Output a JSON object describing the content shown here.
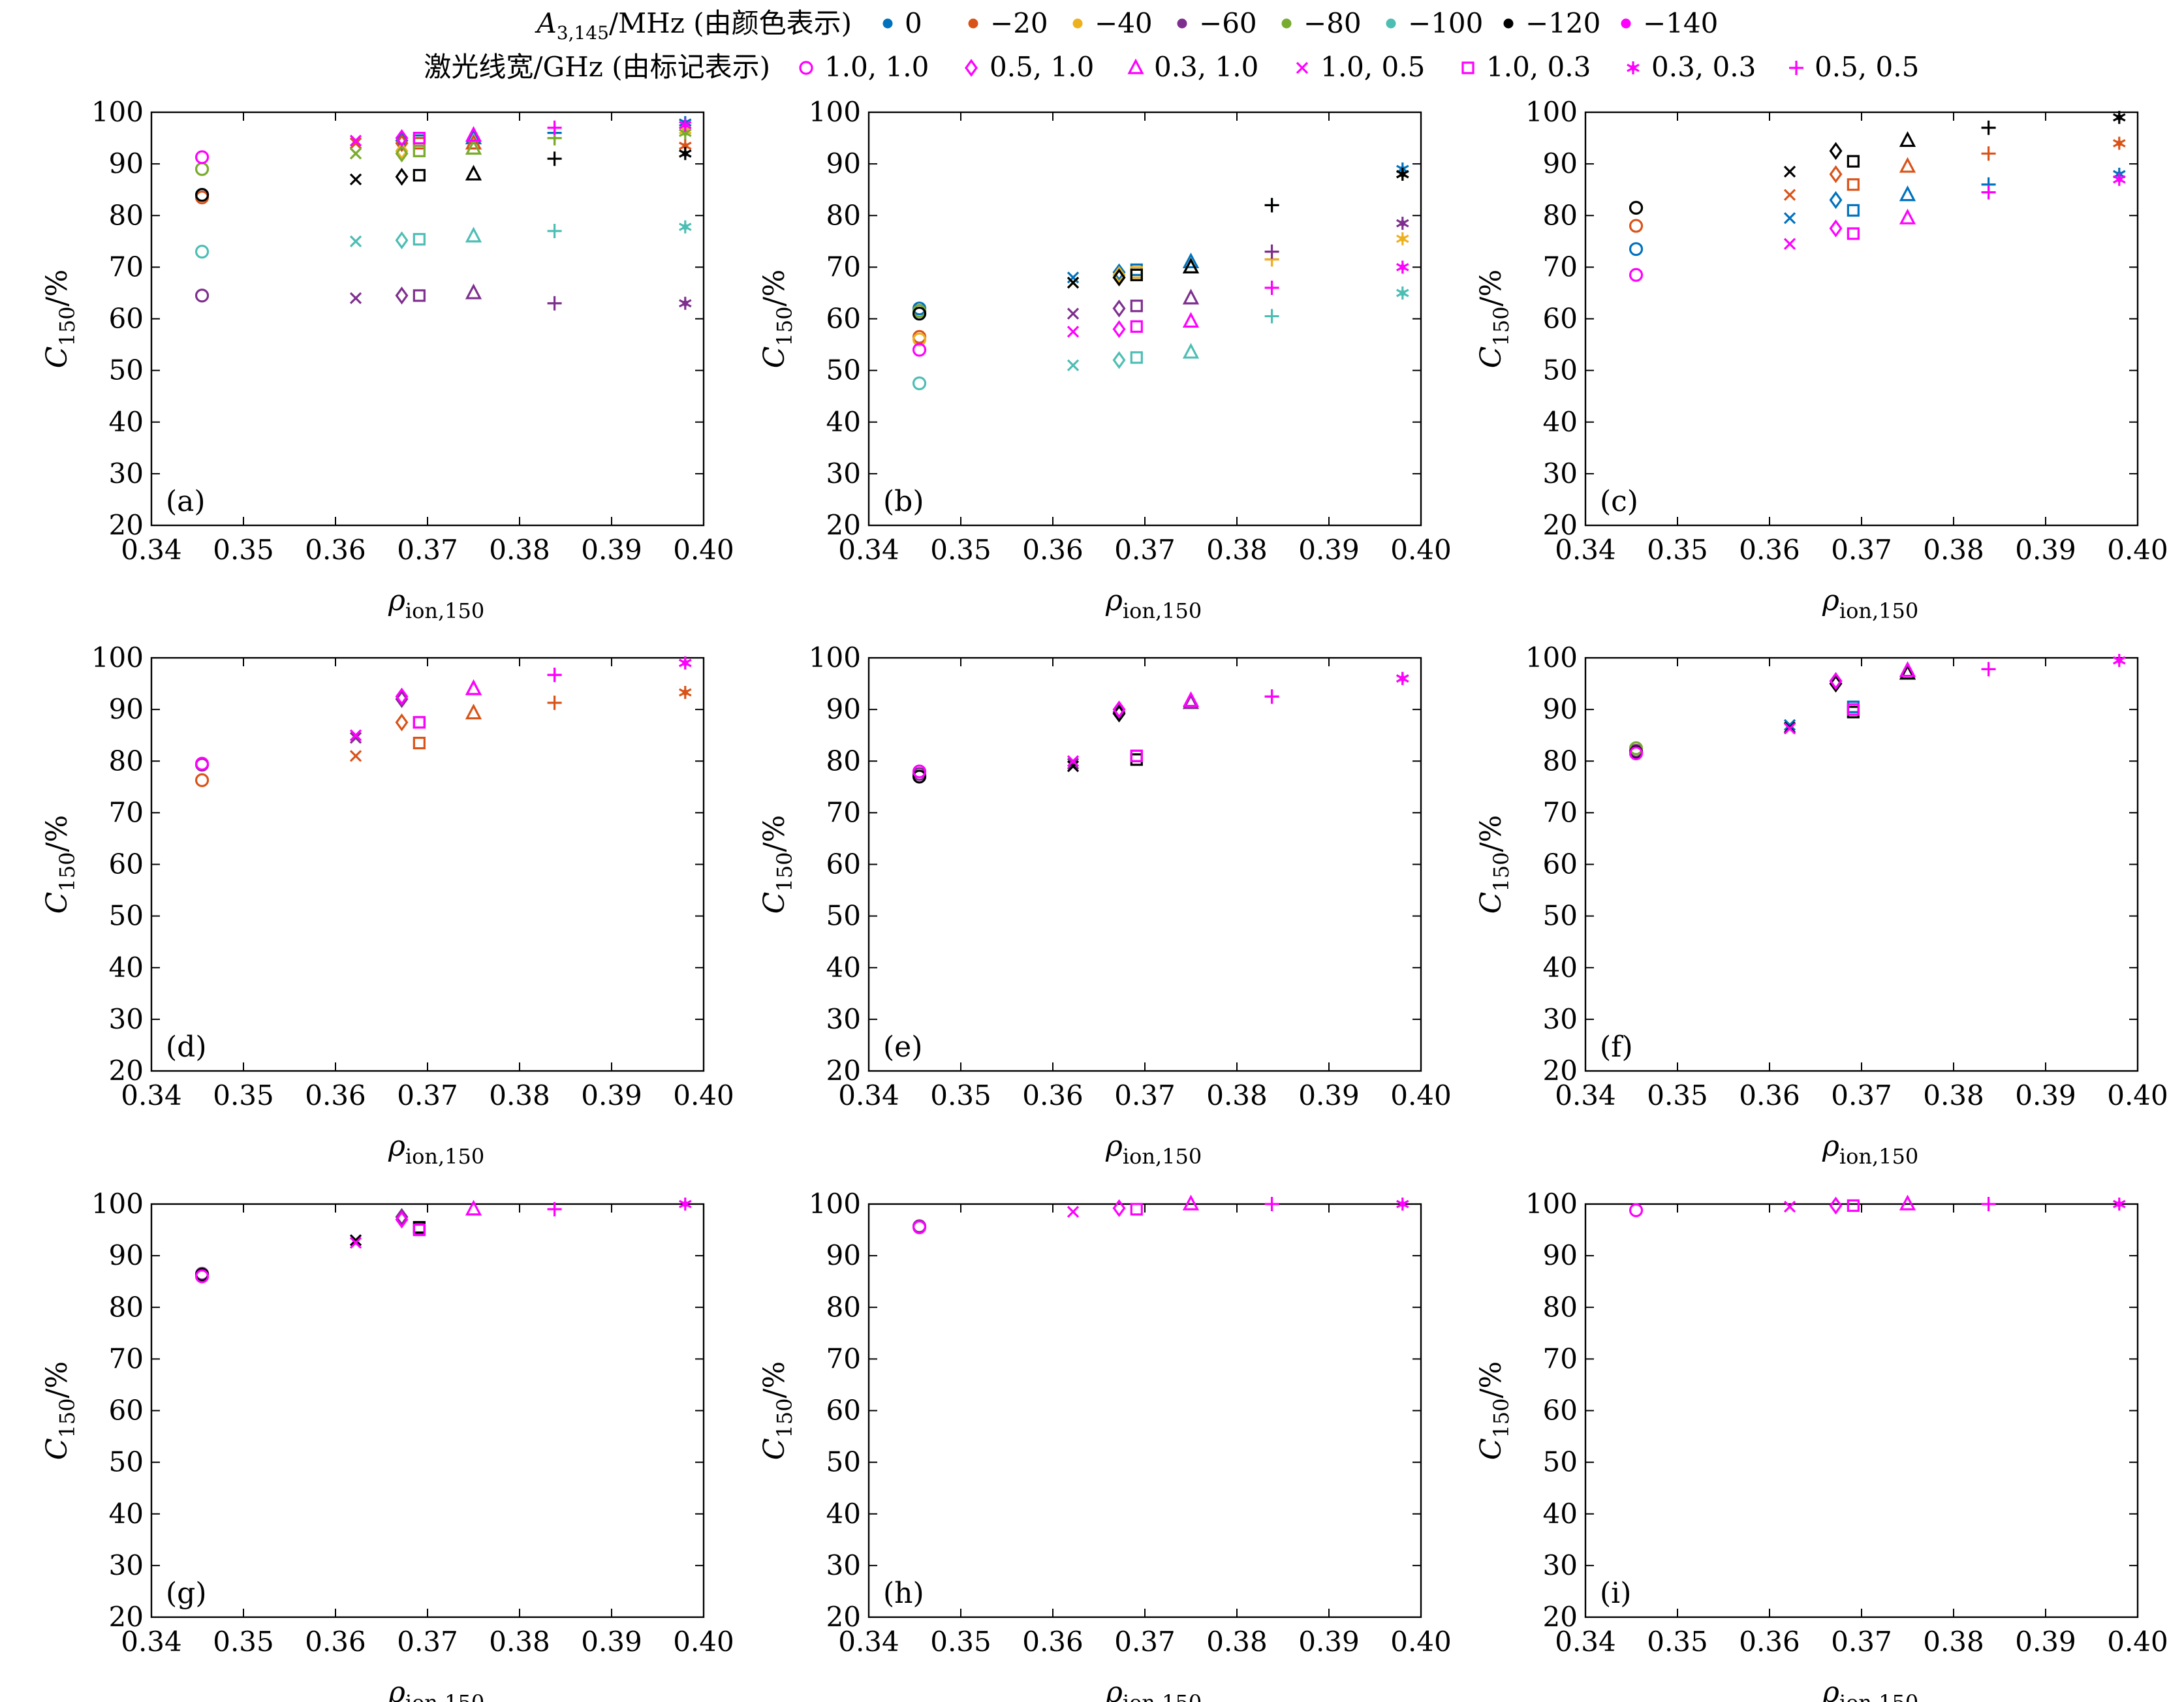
{
  "legend": {
    "color_title_main": "A",
    "color_title_sub": "3,145",
    "color_title_rest": "/MHz (由颜色表示)",
    "marker_title": "激光线宽/GHz (由标记表示)",
    "colors": [
      {
        "label": "0",
        "color": "#0072BD"
      },
      {
        "label": "−20",
        "color": "#D95319"
      },
      {
        "label": "−40",
        "color": "#EDB120"
      },
      {
        "label": "−60",
        "color": "#7E2F8E"
      },
      {
        "label": "−80",
        "color": "#77AC30"
      },
      {
        "label": "−100",
        "color": "#4DBEB4"
      },
      {
        "label": "−120",
        "color": "#000000"
      },
      {
        "label": "−140",
        "color": "#FF00FF"
      }
    ],
    "markers": [
      {
        "label": "1.0, 1.0",
        "marker": "circle"
      },
      {
        "label": "0.5, 1.0",
        "marker": "diamond"
      },
      {
        "label": "0.3, 1.0",
        "marker": "triangle"
      },
      {
        "label": "1.0, 0.5",
        "marker": "x"
      },
      {
        "label": "1.0, 0.3",
        "marker": "square"
      },
      {
        "label": "0.3, 0.3",
        "marker": "star"
      },
      {
        "label": "0.5, 0.5",
        "marker": "plus"
      }
    ]
  },
  "chart_data": {
    "type": "scatter",
    "rows": 3,
    "cols": 3,
    "xlim": [
      0.34,
      0.4
    ],
    "ylim": [
      20,
      100
    ],
    "xticks": [
      "0.34",
      "0.35",
      "0.36",
      "0.37",
      "0.38",
      "0.39",
      "0.40"
    ],
    "yticks": [
      "20",
      "30",
      "40",
      "50",
      "60",
      "70",
      "80",
      "90",
      "100"
    ],
    "xlabel_main": "ρ",
    "xlabel_sub": "ion,150",
    "ylabel_main": "C",
    "ylabel_sub": "150",
    "ylabel_rest": "/%",
    "marker_x": {
      "circle": 0.3455,
      "x": 0.3622,
      "diamond": 0.3672,
      "square": 0.3691,
      "triangle": 0.375,
      "plus": 0.3838,
      "star": 0.398
    },
    "color_order": [
      "0",
      "−20",
      "−40",
      "−60",
      "−80",
      "−100",
      "−120",
      "−140"
    ],
    "panels": [
      {
        "label": "(a)",
        "values": {
          "circle": [
            84,
            83.5,
            89,
            64.5,
            89,
            73,
            84,
            91.3
          ],
          "x": [
            94,
            94,
            92,
            64,
            92,
            75,
            87,
            94.5
          ],
          "diamond": [
            94.5,
            94,
            92.5,
            64.5,
            92,
            75.2,
            87.5,
            95
          ],
          "square": [
            94.5,
            94,
            92.5,
            64.5,
            92.5,
            75.4,
            87.8,
            95
          ],
          "triangle": [
            95,
            94,
            93,
            65,
            93,
            76,
            88,
            95.5
          ],
          "plus": [
            96,
            95,
            95,
            63,
            95,
            77,
            91,
            97
          ],
          "star": [
            98,
            93.5,
            96.5,
            63,
            96,
            77.8,
            92,
            97.5
          ]
        }
      },
      {
        "label": "(b)",
        "values": {
          "circle": [
            62,
            56.5,
            56,
            61.5,
            61.5,
            47.5,
            61,
            54
          ],
          "x": [
            68,
            67,
            67,
            61,
            67,
            51,
            67,
            57.5
          ],
          "diamond": [
            69,
            68,
            68.5,
            62,
            68,
            52,
            68,
            58
          ],
          "square": [
            69.5,
            68.5,
            69,
            62.5,
            68.5,
            52.5,
            68.5,
            58.5
          ],
          "triangle": [
            71,
            70,
            70,
            64,
            70,
            53.5,
            70,
            59.5
          ],
          "plus": [
            82,
            71.5,
            71.5,
            73,
            82,
            60.5,
            82,
            66
          ],
          "star": [
            89,
            88,
            75.5,
            78.5,
            88,
            65,
            88,
            70
          ]
        }
      },
      {
        "label": "(c)",
        "values": {
          "circle": [
            73.5,
            78,
            null,
            null,
            81.5,
            null,
            81.5,
            68.5
          ],
          "x": [
            79.5,
            84,
            null,
            null,
            null,
            null,
            88.5,
            74.5
          ],
          "diamond": [
            83,
            88,
            null,
            null,
            null,
            null,
            92.5,
            77.5
          ],
          "square": [
            81,
            86,
            null,
            null,
            null,
            null,
            90.5,
            76.5
          ],
          "triangle": [
            84,
            89.5,
            null,
            null,
            null,
            null,
            94.5,
            79.5
          ],
          "plus": [
            86,
            92,
            null,
            null,
            null,
            null,
            97,
            84.5
          ],
          "star": [
            88,
            94,
            null,
            null,
            null,
            null,
            99,
            87
          ]
        }
      },
      {
        "label": "(d)",
        "values": {
          "circle": [
            null,
            76.3,
            null,
            79.3,
            null,
            null,
            null,
            79.5
          ],
          "x": [
            null,
            81,
            null,
            84.5,
            null,
            null,
            null,
            85
          ],
          "diamond": [
            null,
            87.5,
            null,
            92,
            null,
            null,
            null,
            92.5
          ],
          "square": [
            null,
            83.5,
            null,
            87.5,
            null,
            null,
            null,
            87.5
          ],
          "triangle": [
            null,
            89.3,
            null,
            94,
            null,
            null,
            null,
            94
          ],
          "plus": [
            null,
            91.3,
            null,
            96.7,
            null,
            null,
            null,
            96.7
          ],
          "star": [
            null,
            93.3,
            null,
            99,
            null,
            null,
            null,
            99
          ]
        }
      },
      {
        "label": "(e)",
        "values": {
          "circle": [
            null,
            null,
            null,
            77.5,
            null,
            null,
            77,
            78
          ],
          "x": [
            null,
            null,
            null,
            79.5,
            null,
            null,
            79,
            80
          ],
          "diamond": [
            null,
            null,
            null,
            89.5,
            null,
            null,
            89.2,
            90
          ],
          "square": [
            null,
            null,
            null,
            81,
            null,
            null,
            80.3,
            81
          ],
          "triangle": [
            null,
            null,
            null,
            91.3,
            null,
            null,
            null,
            91.7
          ],
          "plus": [
            null,
            null,
            null,
            92.5,
            null,
            null,
            null,
            92.5
          ],
          "star": [
            null,
            null,
            null,
            96,
            null,
            null,
            null,
            96
          ]
        }
      },
      {
        "label": "(f)",
        "values": {
          "circle": [
            null,
            null,
            null,
            82,
            82.5,
            null,
            81.7,
            81.5
          ],
          "x": [
            87,
            null,
            null,
            null,
            null,
            null,
            86.5,
            86.3
          ],
          "diamond": [
            null,
            null,
            null,
            95.5,
            null,
            null,
            95,
            95.5
          ],
          "square": [
            90.5,
            null,
            null,
            null,
            null,
            null,
            89.5,
            90
          ],
          "triangle": [
            null,
            null,
            null,
            97.5,
            97,
            null,
            97,
            97.5
          ],
          "plus": [
            null,
            null,
            null,
            null,
            null,
            null,
            null,
            97.8
          ],
          "star": [
            null,
            null,
            null,
            null,
            null,
            null,
            null,
            99.5
          ]
        }
      },
      {
        "label": "(g)",
        "values": {
          "circle": [
            null,
            null,
            null,
            86.5,
            null,
            null,
            86.3,
            86
          ],
          "x": [
            null,
            null,
            null,
            null,
            null,
            null,
            93,
            92.5
          ],
          "diamond": [
            null,
            null,
            null,
            97.5,
            null,
            null,
            null,
            97
          ],
          "square": [
            null,
            null,
            null,
            95.2,
            null,
            null,
            95.5,
            95
          ],
          "triangle": [
            null,
            null,
            null,
            null,
            null,
            null,
            null,
            99
          ],
          "plus": [
            null,
            null,
            null,
            null,
            null,
            null,
            null,
            99
          ],
          "star": [
            null,
            null,
            null,
            null,
            null,
            null,
            null,
            100
          ]
        }
      },
      {
        "label": "(h)",
        "values": {
          "circle": [
            null,
            null,
            null,
            95.7,
            null,
            null,
            null,
            95.5
          ],
          "x": [
            null,
            null,
            null,
            null,
            null,
            null,
            null,
            98.5
          ],
          "diamond": [
            null,
            null,
            null,
            null,
            null,
            null,
            null,
            99.2
          ],
          "square": [
            null,
            null,
            null,
            null,
            null,
            null,
            null,
            99
          ],
          "triangle": [
            null,
            null,
            null,
            null,
            null,
            null,
            null,
            100
          ],
          "plus": [
            null,
            null,
            null,
            null,
            null,
            null,
            null,
            100
          ],
          "star": [
            null,
            null,
            null,
            null,
            null,
            null,
            null,
            100
          ]
        }
      },
      {
        "label": "(i)",
        "values": {
          "circle": [
            null,
            null,
            null,
            null,
            null,
            null,
            null,
            98.8
          ],
          "x": [
            null,
            null,
            null,
            null,
            null,
            null,
            null,
            99.5
          ],
          "diamond": [
            null,
            null,
            null,
            null,
            null,
            null,
            null,
            99.7
          ],
          "square": [
            null,
            null,
            null,
            null,
            null,
            null,
            null,
            99.7
          ],
          "triangle": [
            null,
            null,
            null,
            null,
            null,
            null,
            null,
            100
          ],
          "plus": [
            null,
            null,
            null,
            null,
            null,
            null,
            null,
            100
          ],
          "star": [
            null,
            null,
            null,
            null,
            null,
            null,
            null,
            100
          ]
        }
      }
    ]
  }
}
